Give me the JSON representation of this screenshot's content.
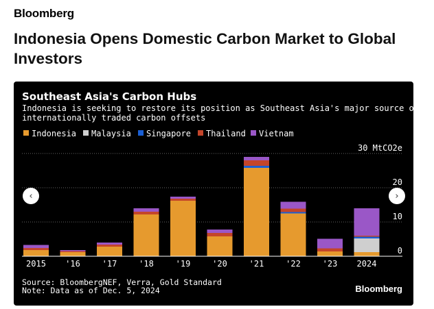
{
  "site": {
    "brand": "Bloomberg"
  },
  "article": {
    "headline": "Indonesia Opens Domestic Carbon Market to Global Investors"
  },
  "nav": {
    "prev_symbol": "‹",
    "next_symbol": "›",
    "prev_icon": "chevron-left-icon",
    "next_icon": "chevron-right-icon"
  },
  "colors": {
    "background": "#000000",
    "Indonesia": "#e69a2e",
    "Malaysia": "#cfcfcf",
    "Singapore": "#1a5fd4",
    "Thailand": "#c4452a",
    "Vietnam": "#9a57c7"
  },
  "chart_data": {
    "type": "bar",
    "stacked": true,
    "title": "Southeast Asia's Carbon Hubs",
    "subtitle": "Indonesia is seeking to restore its position as Southeast Asia's major source of internationally traded carbon offsets",
    "categories": [
      "2015",
      "'16",
      "'17",
      "'18",
      "'19",
      "'20",
      "'21",
      "'22",
      "'23",
      "2024"
    ],
    "series": [
      {
        "name": "Indonesia",
        "values": [
          1.8,
          1.2,
          2.8,
          12.2,
          16.2,
          5.8,
          25.8,
          12.5,
          1.4,
          1.2
        ]
      },
      {
        "name": "Malaysia",
        "values": [
          0,
          0,
          0,
          0,
          0,
          0,
          0,
          0,
          0,
          4.0
        ]
      },
      {
        "name": "Singapore",
        "values": [
          0,
          0,
          0,
          0,
          0,
          0,
          0.6,
          0.4,
          0,
          0.5
        ]
      },
      {
        "name": "Thailand",
        "values": [
          0.6,
          0.3,
          0.6,
          0.8,
          0.6,
          1.0,
          1.6,
          1.0,
          0.9,
          0.3
        ]
      },
      {
        "name": "Vietnam",
        "values": [
          0.9,
          0.3,
          0.6,
          1.0,
          0.6,
          1.0,
          1.0,
          2.0,
          2.8,
          8.0
        ]
      }
    ],
    "ylabel": "",
    "y_unit_label": "30 MtCO2e",
    "y_ticks": [
      0,
      10,
      20,
      30
    ],
    "ylim": [
      0,
      30
    ],
    "legend_position": "top-left",
    "grid": true,
    "source": "Source: BloombergNEF, Verra, Gold Standard",
    "note": "Note: Data as of Dec. 5, 2024",
    "logo": "Bloomberg"
  }
}
